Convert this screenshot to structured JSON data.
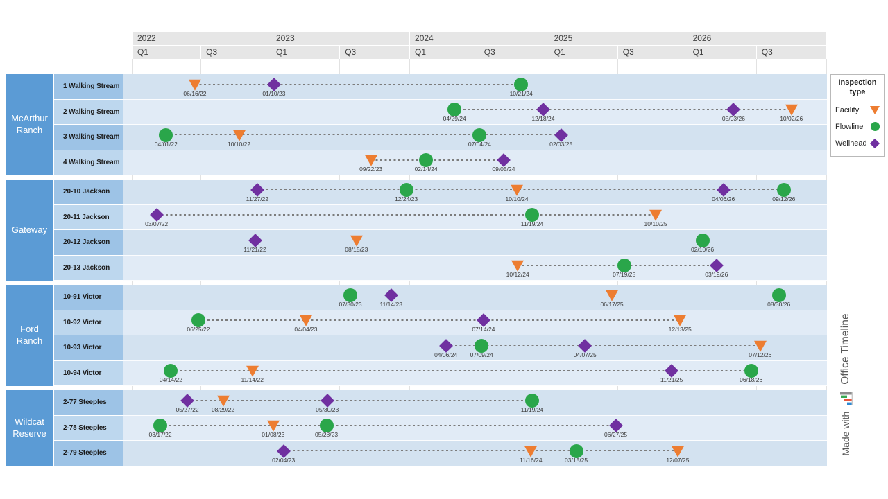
{
  "chart_data": {
    "type": "timeline",
    "title": "",
    "timeline_start": "01/01/22",
    "timeline_end": "01/01/27",
    "years": [
      "2022",
      "2023",
      "2024",
      "2025",
      "2026"
    ],
    "quarter_labels": [
      "Q1",
      "Q3"
    ],
    "legend": {
      "title": "Inspection type",
      "entries": [
        {
          "label": "Facility",
          "type": "facility"
        },
        {
          "label": "Flowline",
          "type": "flowline"
        },
        {
          "label": "Wellhead",
          "type": "wellhead"
        }
      ]
    },
    "groups": [
      {
        "name": "McArthur Ranch",
        "rows": [
          {
            "label": "1 Walking Stream",
            "markers": [
              {
                "type": "facility",
                "date": "06/16/22"
              },
              {
                "type": "wellhead",
                "date": "01/10/23"
              },
              {
                "type": "flowline",
                "date": "10/21/24"
              }
            ]
          },
          {
            "label": "2 Walking Stream",
            "markers": [
              {
                "type": "flowline",
                "date": "04/29/24"
              },
              {
                "type": "wellhead",
                "date": "12/18/24"
              },
              {
                "type": "wellhead",
                "date": "05/03/26"
              },
              {
                "type": "facility",
                "date": "10/02/26"
              }
            ]
          },
          {
            "label": "3 Walking Stream",
            "markers": [
              {
                "type": "flowline",
                "date": "04/01/22"
              },
              {
                "type": "facility",
                "date": "10/10/22"
              },
              {
                "type": "flowline",
                "date": "07/04/24"
              },
              {
                "type": "wellhead",
                "date": "02/03/25"
              }
            ]
          },
          {
            "label": "4 Walking Stream",
            "markers": [
              {
                "type": "facility",
                "date": "09/22/23"
              },
              {
                "type": "flowline",
                "date": "02/14/24"
              },
              {
                "type": "wellhead",
                "date": "09/05/24"
              }
            ]
          }
        ]
      },
      {
        "name": "Gateway",
        "rows": [
          {
            "label": "20-10 Jackson",
            "markers": [
              {
                "type": "wellhead",
                "date": "11/27/22"
              },
              {
                "type": "flowline",
                "date": "12/24/23"
              },
              {
                "type": "facility",
                "date": "10/10/24"
              },
              {
                "type": "wellhead",
                "date": "04/06/26"
              },
              {
                "type": "flowline",
                "date": "09/12/26"
              }
            ]
          },
          {
            "label": "20-11 Jackson",
            "markers": [
              {
                "type": "wellhead",
                "date": "03/07/22"
              },
              {
                "type": "flowline",
                "date": "11/19/24"
              },
              {
                "type": "facility",
                "date": "10/10/25"
              }
            ]
          },
          {
            "label": "20-12 Jackson",
            "markers": [
              {
                "type": "wellhead",
                "date": "11/21/22"
              },
              {
                "type": "facility",
                "date": "08/15/23"
              },
              {
                "type": "flowline",
                "date": "02/10/26"
              }
            ]
          },
          {
            "label": "20-13 Jackson",
            "markers": [
              {
                "type": "facility",
                "date": "10/12/24"
              },
              {
                "type": "flowline",
                "date": "07/19/25"
              },
              {
                "type": "wellhead",
                "date": "03/19/26"
              }
            ]
          }
        ]
      },
      {
        "name": "Ford Ranch",
        "rows": [
          {
            "label": "10-91 Victor",
            "markers": [
              {
                "type": "flowline",
                "date": "07/30/23"
              },
              {
                "type": "wellhead",
                "date": "11/14/23"
              },
              {
                "type": "facility",
                "date": "06/17/25"
              },
              {
                "type": "flowline",
                "date": "08/30/26"
              }
            ]
          },
          {
            "label": "10-92 Victor",
            "markers": [
              {
                "type": "flowline",
                "date": "06/25/22"
              },
              {
                "type": "facility",
                "date": "04/04/23"
              },
              {
                "type": "wellhead",
                "date": "07/14/24"
              },
              {
                "type": "facility",
                "date": "12/13/25"
              }
            ]
          },
          {
            "label": "10-93 Victor",
            "markers": [
              {
                "type": "wellhead",
                "date": "04/06/24"
              },
              {
                "type": "flowline",
                "date": "07/09/24"
              },
              {
                "type": "wellhead",
                "date": "04/07/25"
              },
              {
                "type": "facility",
                "date": "07/12/26"
              }
            ]
          },
          {
            "label": "10-94 Victor",
            "markers": [
              {
                "type": "flowline",
                "date": "04/14/22"
              },
              {
                "type": "facility",
                "date": "11/14/22"
              },
              {
                "type": "wellhead",
                "date": "11/21/25"
              },
              {
                "type": "flowline",
                "date": "06/18/26"
              }
            ]
          }
        ]
      },
      {
        "name": "Wildcat Reserve",
        "rows": [
          {
            "label": "2-77 Steeples",
            "markers": [
              {
                "type": "wellhead",
                "date": "05/27/22"
              },
              {
                "type": "facility",
                "date": "08/29/22"
              },
              {
                "type": "wellhead",
                "date": "05/30/23"
              },
              {
                "type": "flowline",
                "date": "11/19/24"
              }
            ]
          },
          {
            "label": "2-78 Steeples",
            "markers": [
              {
                "type": "flowline",
                "date": "03/17/22"
              },
              {
                "type": "facility",
                "date": "01/08/23"
              },
              {
                "type": "flowline",
                "date": "05/28/23"
              },
              {
                "type": "wellhead",
                "date": "06/27/25"
              }
            ]
          },
          {
            "label": "2-79 Steeples",
            "markers": [
              {
                "type": "wellhead",
                "date": "02/04/23"
              },
              {
                "type": "facility",
                "date": "11/16/24"
              },
              {
                "type": "flowline",
                "date": "03/15/25"
              },
              {
                "type": "facility",
                "date": "12/07/25"
              }
            ]
          }
        ]
      }
    ],
    "colors": {
      "facility": "#ED7D31",
      "flowline": "#2AA64A",
      "wellhead": "#7030A0",
      "group_cell": "#5B9BD5",
      "row_label_odd": "#9DC3E6",
      "row_label_even": "#BDD7EE",
      "band_odd": "#D3E2F0",
      "band_even": "#E1EBF6",
      "header_bg": "#E6E6E6"
    }
  },
  "branding": {
    "prefix": "Made with",
    "product": "Office Timeline"
  }
}
